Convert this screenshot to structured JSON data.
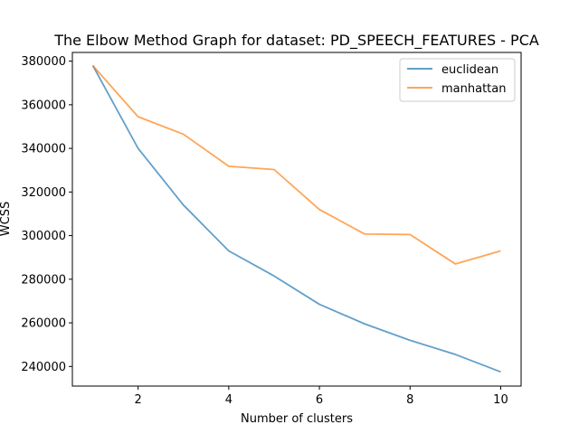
{
  "chart_data": {
    "type": "line",
    "title": "The Elbow Method Graph for dataset: PD_SPEECH_FEATURES - PCA",
    "xlabel": "Number of clusters",
    "ylabel": "WCSS",
    "x": [
      1,
      2,
      3,
      4,
      5,
      6,
      7,
      8,
      9,
      10
    ],
    "xlim": [
      0.55,
      10.45
    ],
    "ylim": [
      231000,
      384000
    ],
    "xticks": [
      2,
      4,
      6,
      8,
      10
    ],
    "xtick_labels": [
      "2",
      "4",
      "6",
      "8",
      "10"
    ],
    "yticks": [
      240000,
      260000,
      280000,
      300000,
      320000,
      340000,
      360000,
      380000
    ],
    "ytick_labels": [
      "240000",
      "260000",
      "280000",
      "300000",
      "320000",
      "340000",
      "360000",
      "380000"
    ],
    "grid": false,
    "legend_position": "top-right",
    "series": [
      {
        "name": "euclidean",
        "color": "#1f77b4",
        "values": [
          378000,
          340000,
          314000,
          293000,
          281500,
          268500,
          259500,
          252000,
          245500,
          237500
        ]
      },
      {
        "name": "manhattan",
        "color": "#ff7f0e",
        "values": [
          378000,
          354500,
          346500,
          331800,
          330300,
          312000,
          300700,
          300500,
          287000,
          293000
        ]
      }
    ]
  }
}
